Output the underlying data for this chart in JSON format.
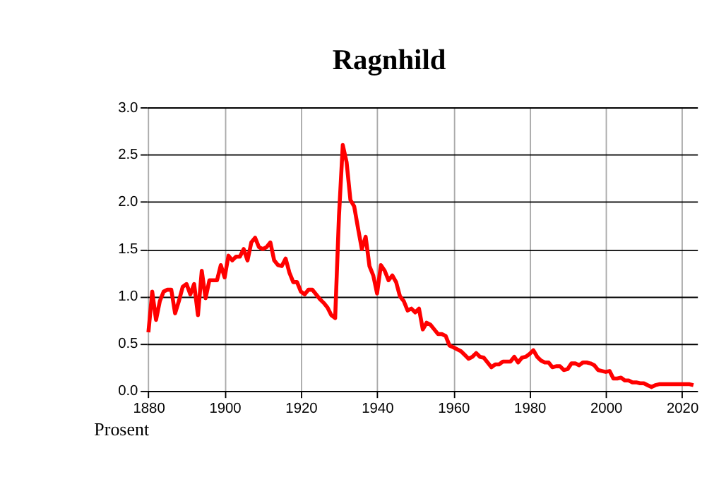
{
  "chart_data": {
    "type": "line",
    "title": "Ragnhild",
    "ylabel": "Prosent",
    "grid": true,
    "line_style": "solid",
    "marker": "none",
    "xlim": [
      1879.5,
      2024
    ],
    "xticks": [
      1880,
      1900,
      1920,
      1940,
      1960,
      1980,
      2000,
      2020
    ],
    "ylim": [
      0,
      3
    ],
    "yticks": [
      {
        "value": 0,
        "label": "0.0"
      },
      {
        "value": 0.5,
        "label": "0.5"
      },
      {
        "value": 1,
        "label": "1.0"
      },
      {
        "value": 1.5,
        "label": "1.5"
      },
      {
        "value": 2,
        "label": "2.0"
      },
      {
        "value": 2.5,
        "label": "2.5"
      },
      {
        "value": 3,
        "label": "3.0"
      }
    ],
    "series": [
      {
        "color": "#ff0000",
        "x": [
          1880,
          1881,
          1882,
          1883,
          1884,
          1885,
          1886,
          1887,
          1888,
          1889,
          1890,
          1891,
          1892,
          1893,
          1894,
          1895,
          1896,
          1897,
          1898,
          1899,
          1900,
          1901,
          1902,
          1903,
          1904,
          1905,
          1906,
          1907,
          1908,
          1909,
          1910,
          1911,
          1912,
          1913,
          1914,
          1915,
          1916,
          1917,
          1918,
          1919,
          1920,
          1921,
          1922,
          1923,
          1924,
          1925,
          1926,
          1927,
          1928,
          1929,
          1930,
          1931,
          1932,
          1933,
          1934,
          1935,
          1936,
          1937,
          1938,
          1939,
          1940,
          1941,
          1942,
          1943,
          1944,
          1945,
          1946,
          1947,
          1948,
          1949,
          1950,
          1951,
          1952,
          1953,
          1954,
          1955,
          1956,
          1957,
          1958,
          1959,
          1960,
          1961,
          1962,
          1963,
          1964,
          1965,
          1966,
          1967,
          1968,
          1969,
          1970,
          1971,
          1972,
          1973,
          1974,
          1975,
          1976,
          1977,
          1978,
          1979,
          1980,
          1981,
          1982,
          1983,
          1984,
          1985,
          1986,
          1987,
          1988,
          1989,
          1990,
          1991,
          1992,
          1993,
          1994,
          1995,
          1996,
          1997,
          1998,
          1999,
          2000,
          2001,
          2002,
          2003,
          2004,
          2005,
          2006,
          2007,
          2008,
          2009,
          2010,
          2011,
          2012,
          2013,
          2014,
          2015,
          2016,
          2017,
          2018,
          2019,
          2020,
          2021,
          2022,
          2023
        ],
        "values": [
          0.62,
          1.05,
          0.75,
          0.95,
          1.05,
          1.07,
          1.07,
          0.82,
          0.95,
          1.1,
          1.13,
          1.02,
          1.13,
          0.8,
          1.27,
          0.98,
          1.17,
          1.17,
          1.17,
          1.33,
          1.2,
          1.43,
          1.38,
          1.42,
          1.42,
          1.5,
          1.38,
          1.57,
          1.62,
          1.52,
          1.5,
          1.52,
          1.57,
          1.38,
          1.33,
          1.32,
          1.4,
          1.25,
          1.15,
          1.15,
          1.05,
          1.02,
          1.07,
          1.07,
          1.02,
          0.97,
          0.93,
          0.88,
          0.8,
          0.77,
          1.85,
          2.6,
          2.42,
          2.02,
          1.95,
          1.72,
          1.5,
          1.63,
          1.32,
          1.22,
          1.03,
          1.33,
          1.27,
          1.17,
          1.22,
          1.15,
          1.0,
          0.95,
          0.85,
          0.87,
          0.83,
          0.87,
          0.65,
          0.72,
          0.7,
          0.65,
          0.6,
          0.6,
          0.58,
          0.48,
          0.46,
          0.44,
          0.42,
          0.38,
          0.34,
          0.36,
          0.4,
          0.36,
          0.35,
          0.3,
          0.25,
          0.28,
          0.28,
          0.31,
          0.31,
          0.31,
          0.36,
          0.3,
          0.35,
          0.36,
          0.39,
          0.43,
          0.36,
          0.32,
          0.3,
          0.3,
          0.25,
          0.26,
          0.26,
          0.22,
          0.23,
          0.29,
          0.29,
          0.27,
          0.3,
          0.3,
          0.29,
          0.27,
          0.22,
          0.21,
          0.2,
          0.21,
          0.13,
          0.13,
          0.14,
          0.11,
          0.11,
          0.09,
          0.09,
          0.08,
          0.08,
          0.06,
          0.04,
          0.06,
          0.07,
          0.07,
          0.07,
          0.07,
          0.07,
          0.07,
          0.07,
          0.07,
          0.07,
          0.06
        ]
      }
    ]
  }
}
